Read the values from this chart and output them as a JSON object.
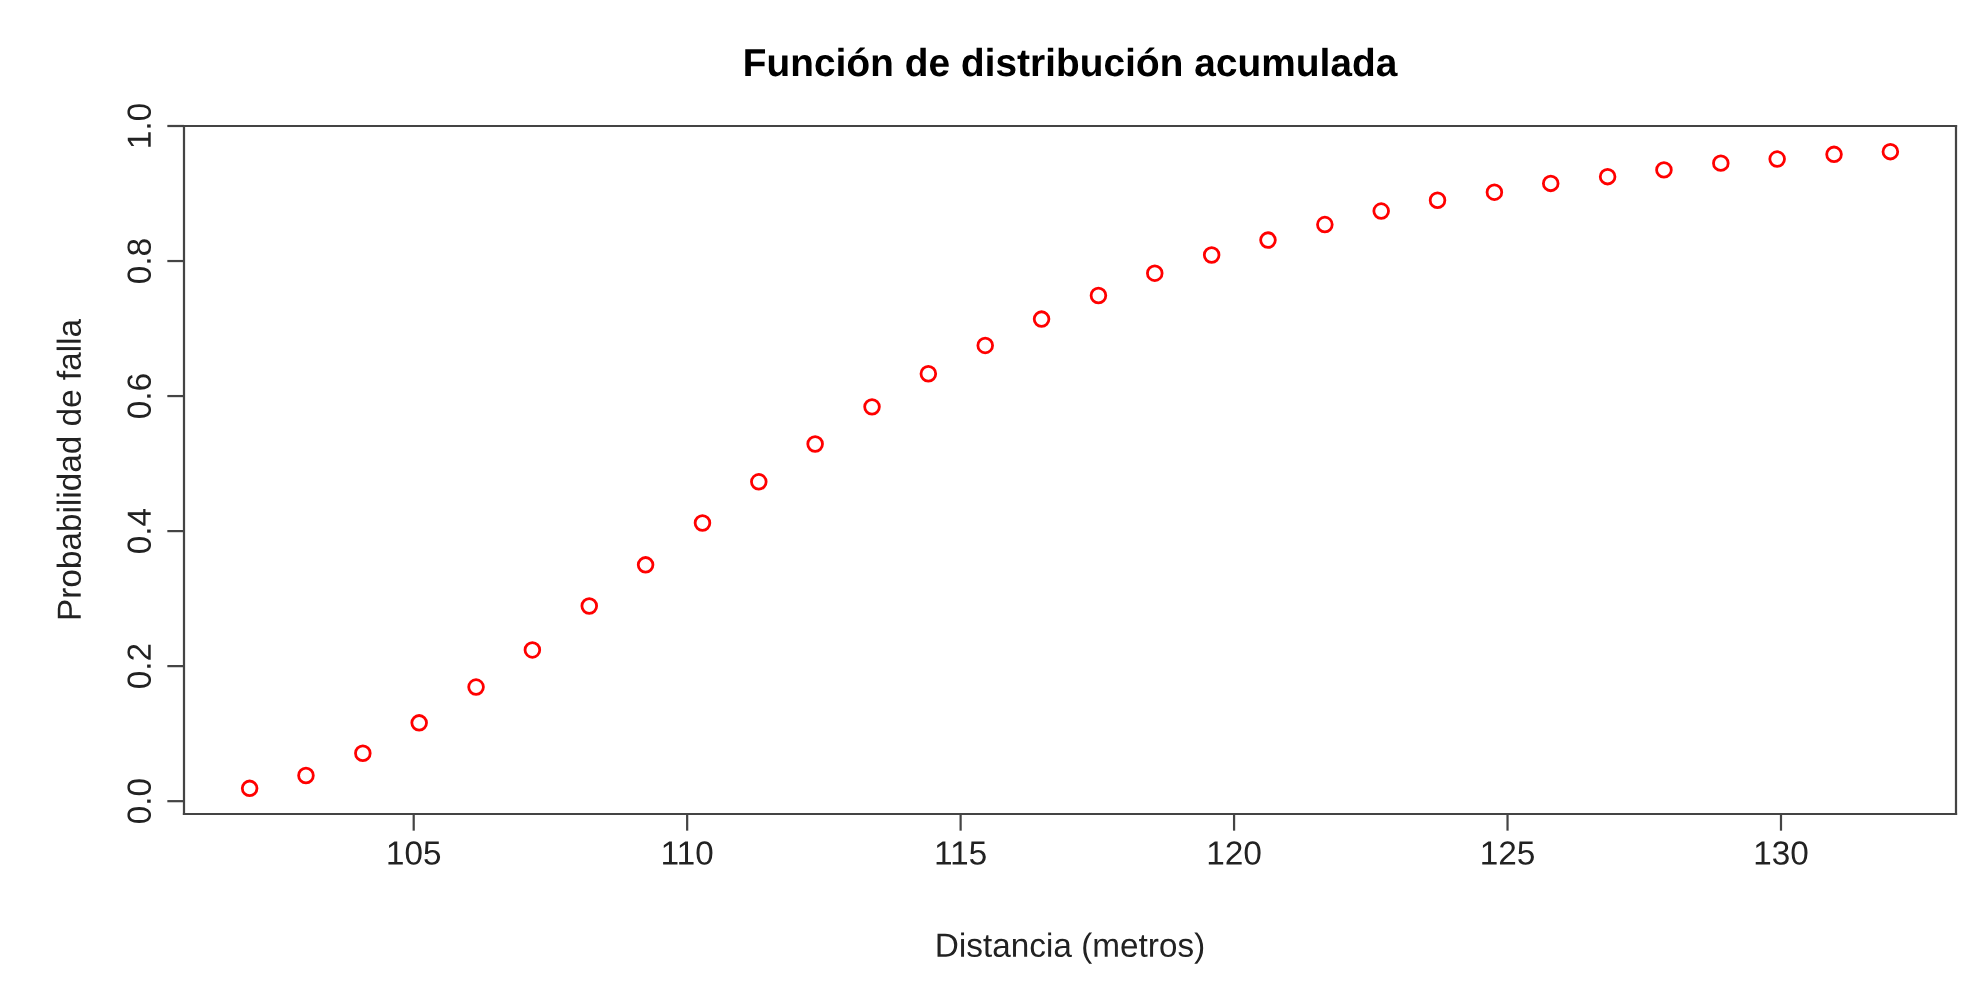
{
  "chart_data": {
    "type": "scatter",
    "title": "Función de distribución acumulada",
    "xlabel": "Distancia (metros)",
    "ylabel": "Probabilidad de falla",
    "x": [
      102.0,
      103.03,
      104.07,
      105.1,
      106.14,
      107.17,
      108.21,
      109.24,
      110.28,
      111.31,
      112.34,
      113.38,
      114.41,
      115.45,
      116.48,
      117.52,
      118.55,
      119.59,
      120.62,
      121.66,
      122.69,
      123.72,
      124.76,
      125.79,
      126.83,
      127.86,
      128.9,
      129.93,
      130.97,
      132.0
    ],
    "series": [
      {
        "color": "#ff0000",
        "values": [
          0.019,
          0.038,
          0.071,
          0.116,
          0.169,
          0.224,
          0.289,
          0.35,
          0.412,
          0.473,
          0.529,
          0.584,
          0.633,
          0.675,
          0.714,
          0.749,
          0.782,
          0.809,
          0.831,
          0.854,
          0.874,
          0.89,
          0.902,
          0.915,
          0.925,
          0.935,
          0.945,
          0.951,
          0.958,
          0.962
        ]
      }
    ],
    "marker": "circle",
    "xlim": [
      100.8,
      133.2
    ],
    "ylim": [
      -0.019,
      1.0
    ],
    "xticks": [
      105,
      110,
      115,
      120,
      125,
      130
    ],
    "yticks": [
      {
        "value": 0,
        "label": "0.0"
      },
      {
        "value": 0.2,
        "label": "0.2"
      },
      {
        "value": 0.4,
        "label": "0.4"
      },
      {
        "value": 0.6,
        "label": "0.6"
      },
      {
        "value": 0.8,
        "label": "0.8"
      },
      {
        "value": 1.0,
        "label": "1.0"
      }
    ],
    "grid": false,
    "legend": false
  }
}
